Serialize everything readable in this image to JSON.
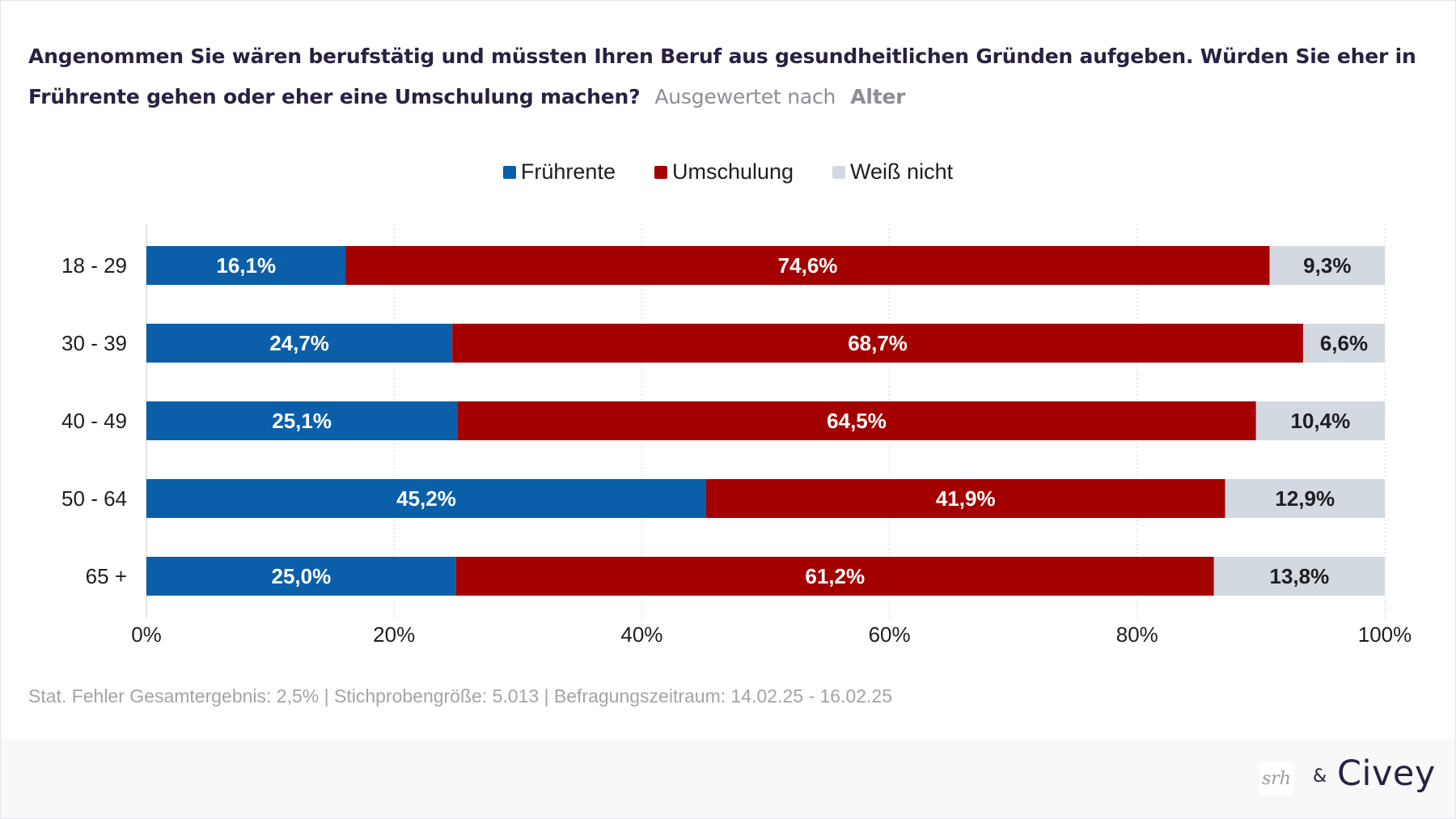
{
  "header": {
    "question": "Angenommen Sie wären berufstätig und müssten Ihren Beruf aus gesundheitlichen Gründen aufgeben. Würden Sie eher in Frührente gehen oder eher eine Umschulung machen?",
    "evaluated_by_label": "Ausgewertet nach",
    "dimension": "Alter"
  },
  "colors": {
    "fruehrente": "#0b5fa9",
    "umschulung": "#a50000",
    "weiss_nicht": "#d2d9e0",
    "title": "#2a2141",
    "muted": "#8d8d94"
  },
  "chart_data": {
    "type": "bar",
    "orientation": "horizontal",
    "stacked": true,
    "categories": [
      "18 - 29",
      "30 - 39",
      "40 - 49",
      "50 - 64",
      "65 +"
    ],
    "series": [
      {
        "name": "Frührente",
        "values": [
          16.1,
          24.7,
          25.1,
          45.2,
          25.0
        ],
        "labels": [
          "16,1%",
          "24,7%",
          "25,1%",
          "45,2%",
          "25,0%"
        ]
      },
      {
        "name": "Umschulung",
        "values": [
          74.6,
          68.7,
          64.5,
          41.9,
          61.2
        ],
        "labels": [
          "74,6%",
          "68,7%",
          "64,5%",
          "41,9%",
          "61,2%"
        ]
      },
      {
        "name": "Weiß nicht",
        "values": [
          9.3,
          6.6,
          10.4,
          12.9,
          13.8
        ],
        "labels": [
          "9,3%",
          "6,6%",
          "10,4%",
          "12,9%",
          "13,8%"
        ]
      }
    ],
    "xlim": [
      0,
      100
    ],
    "xticks": [
      "0%",
      "20%",
      "40%",
      "60%",
      "80%",
      "100%"
    ],
    "grid": true,
    "legend_position": "top-center"
  },
  "footnote": "Stat. Fehler Gesamtergebnis: 2,5% | Stichprobengröße: 5.013 | Befragungszeitraum: 14.02.25 - 16.02.25",
  "branding": {
    "partner_logo_text": "srh",
    "ampersand": "&",
    "civey_logo": "Civey"
  }
}
